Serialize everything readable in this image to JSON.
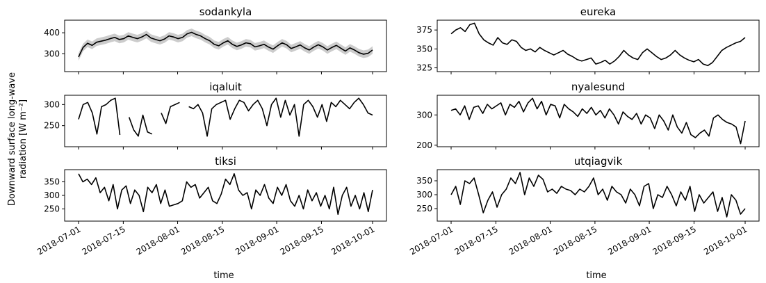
{
  "figure": {
    "ylabel_lines": [
      "Downward surface long-wave",
      "radiation [W m⁻²]"
    ],
    "xlabel": "time"
  },
  "chart_data": [
    {
      "type": "line",
      "title": "sodankyla",
      "yticks": [
        300,
        400
      ],
      "ylim": [
        215,
        460
      ],
      "band": true,
      "series": [
        {
          "values": [
            285,
            330,
            350,
            340,
            355,
            360,
            365,
            372,
            378,
            368,
            372,
            385,
            378,
            372,
            380,
            392,
            375,
            368,
            362,
            370,
            385,
            380,
            372,
            378,
            395,
            402,
            392,
            385,
            372,
            362,
            345,
            338,
            352,
            362,
            345,
            335,
            342,
            352,
            348,
            333,
            338,
            345,
            332,
            322,
            338,
            352,
            343,
            325,
            333,
            342,
            328,
            318,
            332,
            343,
            333,
            318,
            330,
            340,
            326,
            313,
            328,
            318,
            305,
            298,
            302,
            318
          ]
        }
      ],
      "band_width": 18
    },
    {
      "type": "line",
      "title": "eureka",
      "yticks": [
        325,
        350,
        375
      ],
      "ylim": [
        320,
        388
      ],
      "band": false,
      "series": [
        {
          "values": [
            370,
            375,
            378,
            373,
            382,
            384,
            370,
            362,
            358,
            355,
            365,
            358,
            356,
            362,
            360,
            352,
            348,
            350,
            346,
            352,
            348,
            345,
            342,
            345,
            348,
            343,
            340,
            336,
            334,
            336,
            338,
            330,
            332,
            335,
            330,
            334,
            340,
            348,
            342,
            338,
            336,
            345,
            350,
            345,
            340,
            336,
            338,
            342,
            348,
            342,
            338,
            335,
            333,
            336,
            330,
            328,
            332,
            340,
            348,
            352,
            355,
            358,
            360,
            365
          ]
        }
      ]
    },
    {
      "type": "line",
      "title": "iqaluit",
      "yticks": [
        250,
        300
      ],
      "ylim": [
        200,
        322
      ],
      "band": false,
      "series": [
        {
          "values": [
            265,
            300,
            305,
            280,
            230,
            295,
            300,
            310,
            315,
            228,
            null,
            270,
            240,
            225,
            275,
            235,
            230,
            null,
            280,
            255,
            295,
            300,
            305,
            null,
            295,
            290,
            300,
            280,
            225,
            290,
            300,
            305,
            310,
            265,
            290,
            310,
            305,
            285,
            300,
            310,
            290,
            250,
            300,
            315,
            270,
            310,
            275,
            300,
            225,
            300,
            310,
            295,
            270,
            300,
            260,
            305,
            295,
            310,
            300,
            290,
            305,
            315,
            300,
            280,
            275
          ]
        }
      ]
    },
    {
      "type": "line",
      "title": "nyalesund",
      "yticks": [
        200,
        300
      ],
      "ylim": [
        195,
        365
      ],
      "band": false,
      "series": [
        {
          "values": [
            315,
            320,
            300,
            330,
            285,
            325,
            330,
            305,
            335,
            320,
            330,
            340,
            300,
            335,
            325,
            345,
            310,
            340,
            355,
            320,
            345,
            300,
            335,
            330,
            290,
            335,
            320,
            310,
            295,
            320,
            305,
            325,
            300,
            315,
            290,
            320,
            300,
            270,
            310,
            295,
            285,
            305,
            270,
            300,
            290,
            255,
            300,
            280,
            250,
            300,
            260,
            240,
            275,
            235,
            225,
            240,
            250,
            230,
            290,
            300,
            285,
            275,
            270,
            260,
            205,
            280
          ]
        }
      ]
    },
    {
      "type": "line",
      "title": "tiksi",
      "yticks": [
        250,
        300,
        350
      ],
      "ylim": [
        205,
        395
      ],
      "band": false,
      "series": [
        {
          "values": [
            380,
            350,
            360,
            340,
            365,
            310,
            330,
            280,
            340,
            250,
            320,
            335,
            270,
            320,
            300,
            240,
            330,
            310,
            340,
            270,
            320,
            260,
            265,
            270,
            280,
            350,
            330,
            340,
            290,
            310,
            330,
            280,
            270,
            305,
            360,
            340,
            380,
            320,
            300,
            310,
            250,
            320,
            300,
            340,
            290,
            270,
            330,
            300,
            340,
            280,
            260,
            300,
            250,
            320,
            280,
            310,
            260,
            300,
            250,
            330,
            230,
            300,
            330,
            260,
            300,
            250,
            310,
            240,
            320
          ]
        }
      ]
    },
    {
      "type": "line",
      "title": "utqiagvik",
      "yticks": [
        250,
        300,
        350
      ],
      "ylim": [
        205,
        390
      ],
      "band": false,
      "series": [
        {
          "values": [
            300,
            330,
            265,
            350,
            340,
            360,
            300,
            235,
            280,
            310,
            255,
            300,
            320,
            360,
            340,
            380,
            300,
            360,
            330,
            370,
            355,
            310,
            320,
            305,
            330,
            320,
            315,
            300,
            320,
            310,
            330,
            360,
            300,
            320,
            280,
            330,
            310,
            300,
            270,
            320,
            300,
            260,
            330,
            340,
            250,
            300,
            290,
            330,
            300,
            260,
            310,
            280,
            330,
            240,
            300,
            270,
            290,
            310,
            240,
            290,
            220,
            300,
            280,
            230,
            250
          ]
        }
      ]
    }
  ],
  "xticks": [
    "2018-07-01",
    "2018-07-15",
    "2018-08-01",
    "2018-08-15",
    "2018-09-01",
    "2018-09-15",
    "2018-10-01"
  ]
}
